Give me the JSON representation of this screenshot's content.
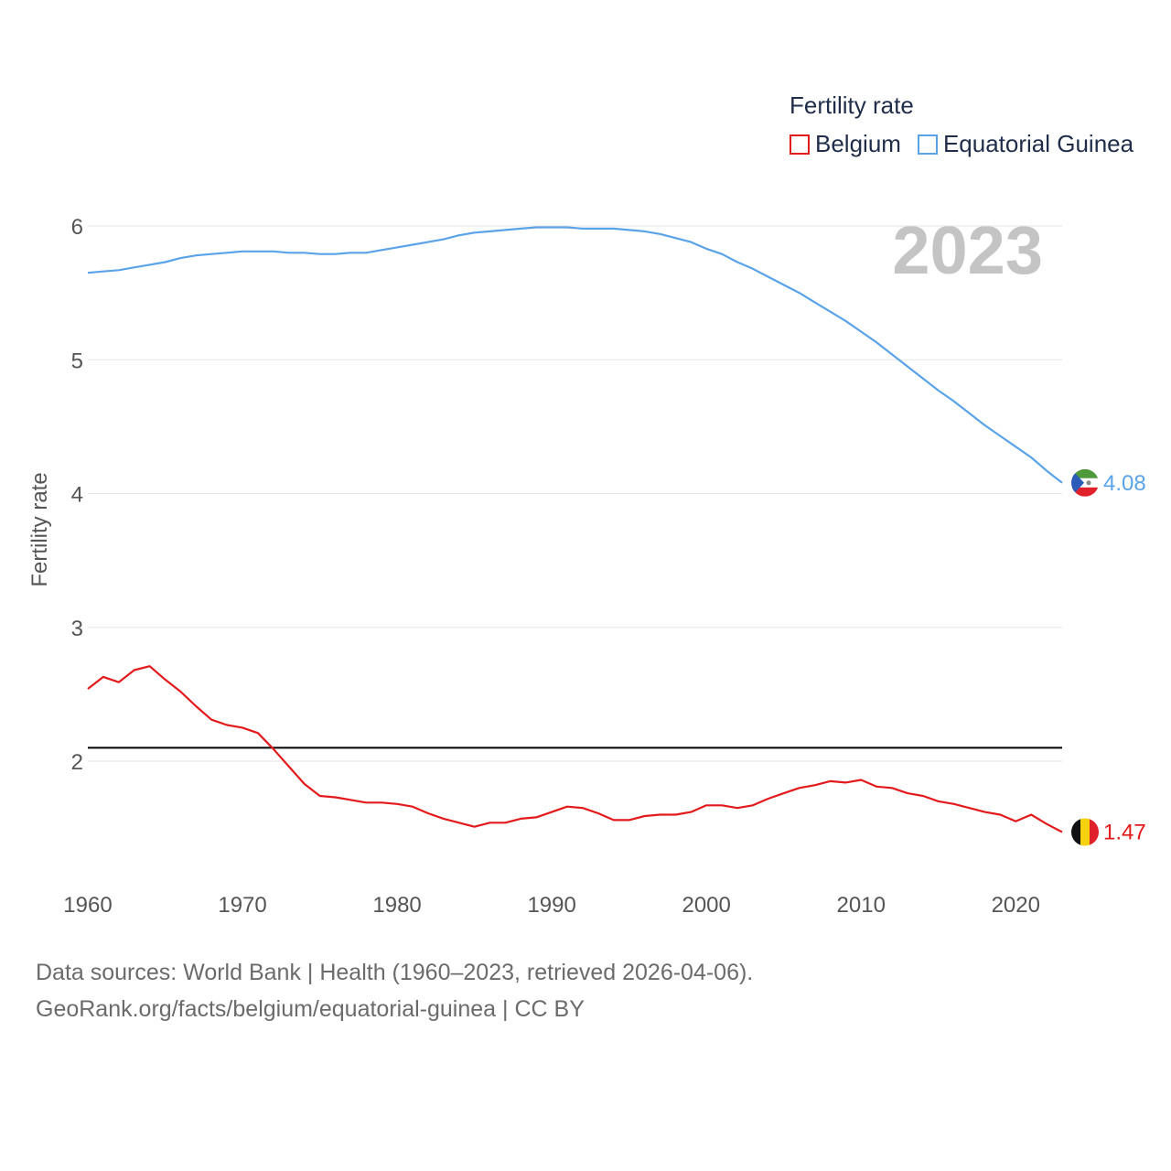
{
  "chart_data": {
    "type": "line",
    "title": "Fertility rate",
    "ylabel": "Fertility rate",
    "year_label": "2023",
    "xlim": [
      1960,
      2023
    ],
    "ylim": [
      1.2,
      6.2
    ],
    "x_ticks": [
      1960,
      1970,
      1980,
      1990,
      2000,
      2010,
      2020
    ],
    "y_ticks": [
      2,
      3,
      4,
      5,
      6
    ],
    "reference_line": 2.1,
    "x": [
      1960,
      1961,
      1962,
      1963,
      1964,
      1965,
      1966,
      1967,
      1968,
      1969,
      1970,
      1971,
      1972,
      1973,
      1974,
      1975,
      1976,
      1977,
      1978,
      1979,
      1980,
      1981,
      1982,
      1983,
      1984,
      1985,
      1986,
      1987,
      1988,
      1989,
      1990,
      1991,
      1992,
      1993,
      1994,
      1995,
      1996,
      1997,
      1998,
      1999,
      2000,
      2001,
      2002,
      2003,
      2004,
      2005,
      2006,
      2007,
      2008,
      2009,
      2010,
      2011,
      2012,
      2013,
      2014,
      2015,
      2016,
      2017,
      2018,
      2019,
      2020,
      2021,
      2022,
      2023
    ],
    "series": [
      {
        "name": "Belgium",
        "color": "#e31a1c",
        "end_label": "1.47",
        "values": [
          2.54,
          2.63,
          2.59,
          2.68,
          2.71,
          2.61,
          2.52,
          2.41,
          2.31,
          2.27,
          2.25,
          2.21,
          2.09,
          1.96,
          1.83,
          1.74,
          1.73,
          1.71,
          1.69,
          1.69,
          1.68,
          1.66,
          1.61,
          1.57,
          1.54,
          1.51,
          1.54,
          1.54,
          1.57,
          1.58,
          1.62,
          1.66,
          1.65,
          1.61,
          1.56,
          1.56,
          1.59,
          1.6,
          1.6,
          1.62,
          1.67,
          1.67,
          1.65,
          1.67,
          1.72,
          1.76,
          1.8,
          1.82,
          1.85,
          1.84,
          1.86,
          1.81,
          1.8,
          1.76,
          1.74,
          1.7,
          1.68,
          1.65,
          1.62,
          1.6,
          1.55,
          1.6,
          1.53,
          1.47
        ]
      },
      {
        "name": "Equatorial Guinea",
        "color": "#5aa3e8",
        "end_label": "4.08",
        "values": [
          5.65,
          5.66,
          5.67,
          5.69,
          5.71,
          5.73,
          5.76,
          5.78,
          5.79,
          5.8,
          5.81,
          5.81,
          5.81,
          5.8,
          5.8,
          5.79,
          5.79,
          5.8,
          5.8,
          5.82,
          5.84,
          5.86,
          5.88,
          5.9,
          5.93,
          5.95,
          5.96,
          5.97,
          5.98,
          5.99,
          5.99,
          5.99,
          5.98,
          5.98,
          5.98,
          5.97,
          5.96,
          5.94,
          5.91,
          5.88,
          5.83,
          5.79,
          5.73,
          5.68,
          5.62,
          5.56,
          5.5,
          5.43,
          5.36,
          5.29,
          5.21,
          5.13,
          5.04,
          4.95,
          4.86,
          4.77,
          4.69,
          4.6,
          4.51,
          4.43,
          4.35,
          4.27,
          4.17,
          4.08
        ]
      }
    ]
  },
  "legend": {
    "title": "Fertility rate",
    "items": [
      "Belgium",
      "Equatorial Guinea"
    ]
  },
  "footer": {
    "line1": "Data sources: World Bank | Health (1960–2023, retrieved 2026-04-06).",
    "line2": "GeoRank.org/facts/belgium/equatorial-guinea | CC BY"
  },
  "flags": {
    "belgium": "flag-belgium-icon",
    "equatorial_guinea": "flag-equatorial-guinea-icon"
  }
}
